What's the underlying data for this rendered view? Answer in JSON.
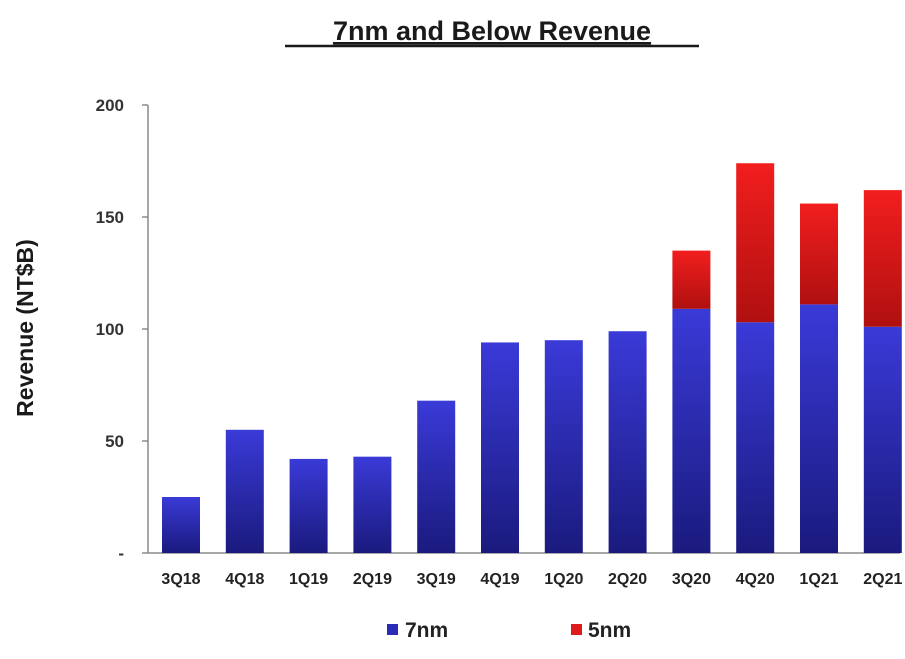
{
  "chart_data": {
    "type": "bar",
    "stacked": true,
    "title": "7nm and Below Revenue",
    "xlabel": "",
    "ylabel": "Revenue  (NT$B)",
    "ylim": [
      0,
      200
    ],
    "yticks": [
      0,
      50,
      100,
      150,
      200
    ],
    "ytick_labels": [
      "-",
      "50",
      "100",
      "150",
      "200"
    ],
    "grid": false,
    "legend_position": "bottom",
    "categories": [
      "3Q18",
      "4Q18",
      "1Q19",
      "2Q19",
      "3Q19",
      "4Q19",
      "1Q20",
      "2Q20",
      "3Q20",
      "4Q20",
      "1Q21",
      "2Q21"
    ],
    "series": [
      {
        "name": "7nm",
        "color": "#2b2bb8",
        "values": [
          25,
          55,
          42,
          43,
          68,
          94,
          95,
          99,
          109,
          103,
          111,
          101
        ]
      },
      {
        "name": "5nm",
        "color": "#e01b1b",
        "values": [
          0,
          0,
          0,
          0,
          0,
          0,
          0,
          0,
          26,
          71,
          45,
          61
        ]
      }
    ]
  }
}
